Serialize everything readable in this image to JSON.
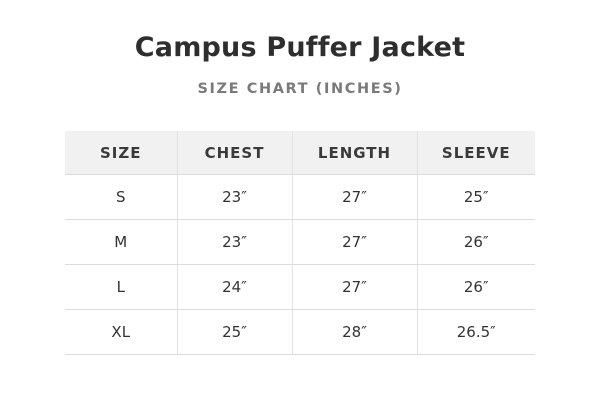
{
  "title": "Campus Puffer Jacket",
  "subtitle": "SIZE CHART (INCHES)",
  "table": {
    "headers": [
      "SIZE",
      "CHEST",
      "LENGTH",
      "SLEEVE"
    ],
    "rows": [
      [
        "S",
        "23″",
        "27″",
        "25″"
      ],
      [
        "M",
        "23″",
        "27″",
        "26″"
      ],
      [
        "L",
        "24″",
        "27″",
        "26″"
      ],
      [
        "XL",
        "25″",
        "28″",
        "26.5″"
      ]
    ]
  }
}
